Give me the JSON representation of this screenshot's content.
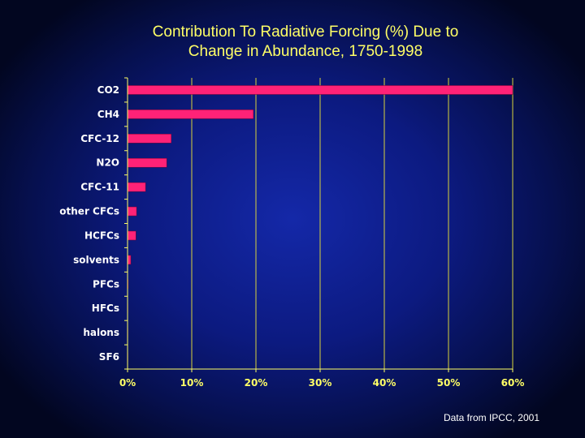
{
  "chart_data": {
    "type": "bar",
    "orientation": "horizontal",
    "title_line1": "Contribution To Radiative Forcing (%)  Due to",
    "title_line2": "Change in Abundance, 1750-1998",
    "categories": [
      "CO2",
      "CH4",
      "CFC-12",
      "N2O",
      "CFC-11",
      "other CFCs",
      "HCFCs",
      "solvents",
      "PFCs",
      "HFCs",
      "halons",
      "SF6"
    ],
    "values": [
      60,
      19.6,
      6.8,
      6.1,
      2.8,
      1.4,
      1.3,
      0.5,
      0.1,
      0.05,
      0.05,
      0.05
    ],
    "xlim": [
      0,
      60
    ],
    "xticks": [
      0,
      10,
      20,
      30,
      40,
      50,
      60
    ],
    "xtick_labels": [
      "0%",
      "10%",
      "20%",
      "30%",
      "40%",
      "50%",
      "60%"
    ],
    "xlabel": "",
    "ylabel": "",
    "grid": "vertical gridlines",
    "legend": "none",
    "bar_color": "#ff2277",
    "text_color": "#ffff66",
    "source": "Data from IPCC, 2001"
  }
}
